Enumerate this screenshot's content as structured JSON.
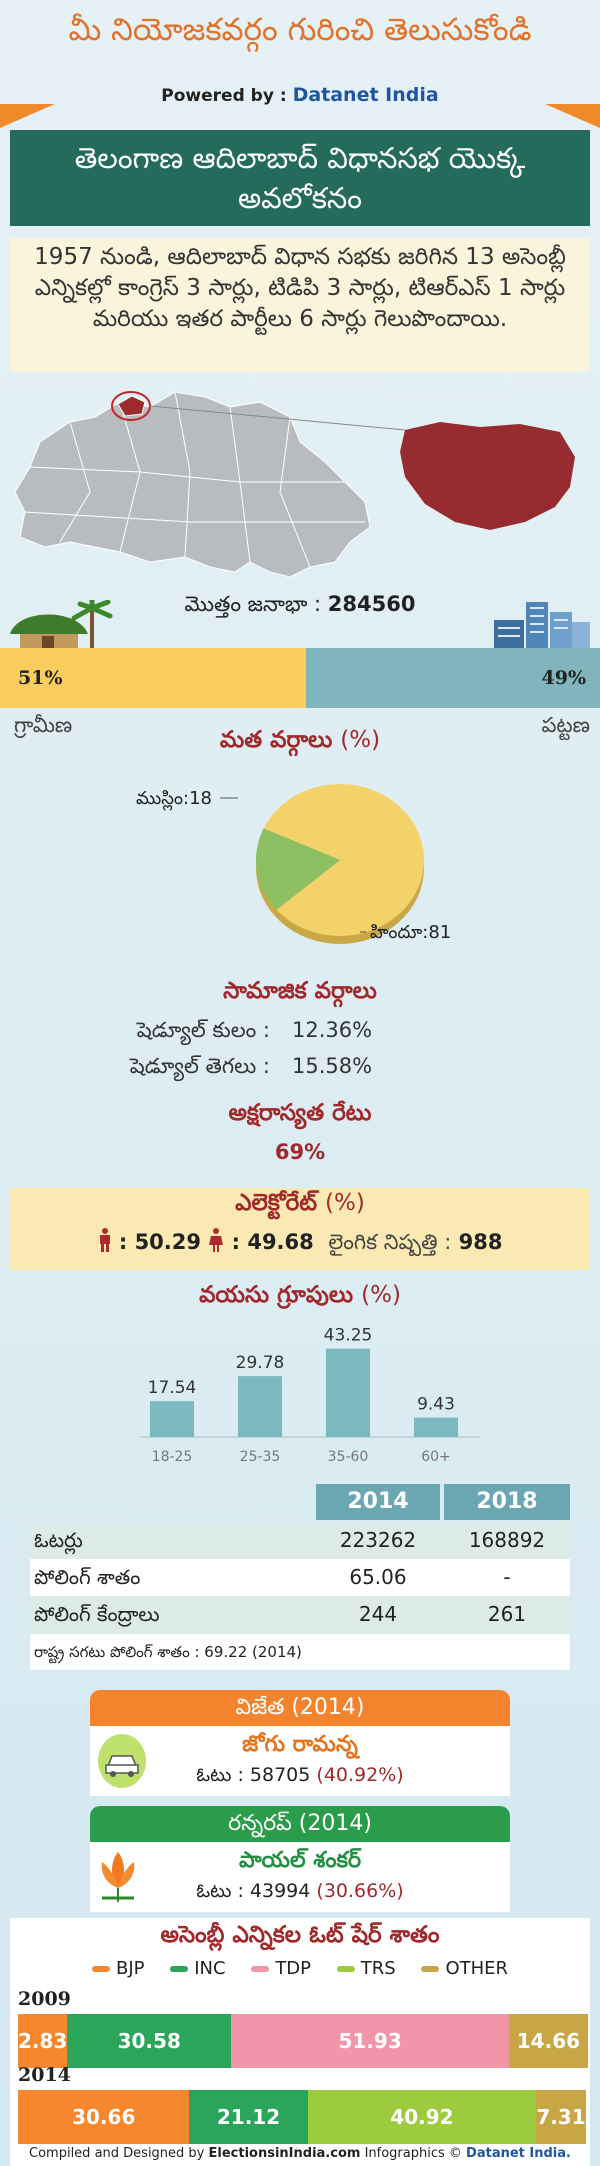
{
  "header": {
    "top_title": "మీ నియోజకవర్గం గురించి తెలుసుకోండి",
    "powered_label": "Powered by :",
    "powered_brand": "Datanet India",
    "banner_line1": "తెలంగాణ ఆదిలాబాద్ విధానసభ యొక్క",
    "banner_line2": "అవలోకనం"
  },
  "intro": {
    "text": "1957 నుండి, ఆదిలాబాద్ విధాన సభకు జరిగిన 13 అసెంబ్లీ ఎన్నికల్లో కాంగ్రెస్ 3 సార్లు, టిడిపి 3 సార్లు, టిఆర్ఎస్ 1 సార్లు మరియు ఇతర పార్టీలు 6 సార్లు గెలుపొందాయి."
  },
  "population": {
    "label": "మొత్తం జనాభా :",
    "value": "284560",
    "rural_pct": 51,
    "urban_pct": 49,
    "rural_text": "51%",
    "urban_text": "49%",
    "rural_label": "గ్రామీణ",
    "urban_label": "పట్టణ"
  },
  "religion": {
    "title": "మత వర్గాలు",
    "unit": "(%)",
    "slices": [
      {
        "label": "హిందూ",
        "value": 81,
        "text": "హిందూ:81",
        "color": "#f4d26a"
      },
      {
        "label": "ముస్లిం",
        "value": 18,
        "text": "ముస్లిం:18",
        "color": "#8cc063"
      }
    ]
  },
  "social": {
    "title": "సామాజిక వర్గాలు",
    "rows": [
      {
        "label": "షెడ్యూల్ కులం :",
        "value": "12.36%"
      },
      {
        "label": "షెడ్యూల్ తెగలు :",
        "value": "15.58%"
      }
    ]
  },
  "literacy": {
    "title": "అక్షరాస్యత రేటు",
    "value": "69%"
  },
  "electorate": {
    "title": "ఎలెక్టోరేట్",
    "unit": "(%)",
    "male": ": 50.29",
    "female": ": 49.68",
    "ratio_label": "లైంగిక నిష్పత్తి :",
    "ratio_value": "988"
  },
  "chart_data": {
    "type": "bar",
    "title": "వయసు గ్రూపులు",
    "unit": "(%)",
    "categories": [
      "18-25",
      "25-35",
      "35-60",
      "60+"
    ],
    "values": [
      17.54,
      29.78,
      43.25,
      9.43
    ],
    "value_labels": [
      "17.54",
      "29.78",
      "43.25",
      "9.43"
    ],
    "ylim": [
      0,
      45
    ],
    "grid": false,
    "color": "#7cb9c0"
  },
  "voters_table": {
    "headers": [
      "2014",
      "2018"
    ],
    "rows": [
      {
        "label": "ఓటర్లు",
        "a": "223262",
        "b": "168892"
      },
      {
        "label": "పోలింగ్ శాతం",
        "a": "65.06",
        "b": "-"
      },
      {
        "label": "పోలింగ్ కేంద్రాలు",
        "a": "244",
        "b": "261"
      }
    ],
    "note": "రాష్ట్ర సగటు పోలింగ్ శాతం : 69.22 (2014)"
  },
  "winner": {
    "head": "విజేత",
    "year": "(2014)",
    "name": "జోగు రామన్న",
    "votes_label": "ఓటు : 58705",
    "votes_pct": "(40.92%)",
    "color": "#f3832d",
    "name_color": "#e8731e"
  },
  "runner": {
    "head": "రన్నరప్",
    "year": "(2014)",
    "name": "పాయల్ శంకర్",
    "votes_label": "ఓటు : 43994",
    "votes_pct": "(30.66%)",
    "color": "#2a9d4a",
    "name_color": "#239041"
  },
  "vote_share": {
    "title": "అసెంబ్లీ ఎన్నికల ఓట్ షేర్ శాతం",
    "legend": [
      {
        "name": "BJP",
        "color": "#f5872e"
      },
      {
        "name": "INC",
        "color": "#2aa55a"
      },
      {
        "name": "TDP",
        "color": "#f195a8"
      },
      {
        "name": "TRS",
        "color": "#9ccb3e"
      },
      {
        "name": "OTHER",
        "color": "#c8a545"
      }
    ],
    "years": [
      {
        "year": "2009",
        "segments": [
          {
            "party": "BJP",
            "value": 2.83,
            "text": "2.83",
            "color": "#f5872e"
          },
          {
            "party": "INC",
            "value": 30.58,
            "text": "30.58",
            "color": "#2aa55a"
          },
          {
            "party": "TDP",
            "value": 51.93,
            "text": "51.93",
            "color": "#f195a8"
          },
          {
            "party": "OTHER",
            "value": 14.66,
            "text": "14.66",
            "color": "#c8a545"
          }
        ]
      },
      {
        "year": "2014",
        "segments": [
          {
            "party": "BJP",
            "value": 30.66,
            "text": "30.66",
            "color": "#f5872e"
          },
          {
            "party": "INC",
            "value": 21.12,
            "text": "21.12",
            "color": "#2aa55a"
          },
          {
            "party": "TRS",
            "value": 40.92,
            "text": "40.92",
            "color": "#9ccb3e"
          },
          {
            "party": "OTHER",
            "value": 7.31,
            "text": "7.31",
            "color": "#c8a545"
          }
        ]
      }
    ]
  },
  "footer": {
    "compiled": "Compiled and Designed by",
    "site": "ElectionsinIndia.com",
    "info": "Infographics ©",
    "brand": "Datanet India."
  }
}
